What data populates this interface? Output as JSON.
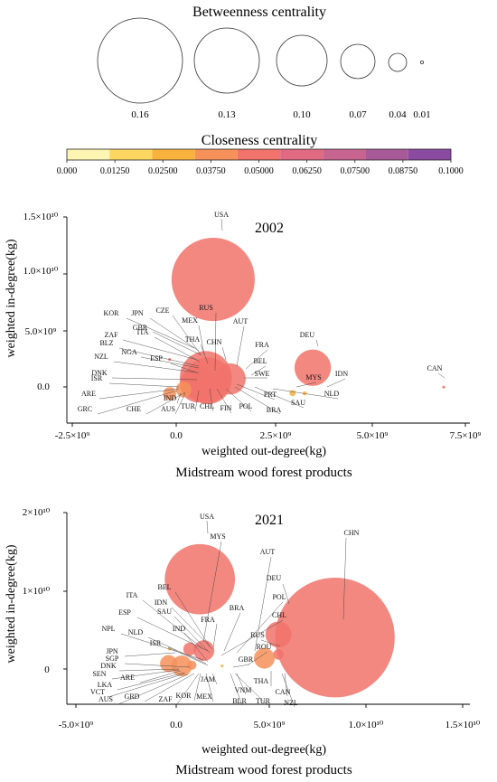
{
  "legend": {
    "betweenness_title": "Betweenness centrality",
    "betweenness_values": [
      "0.16",
      "0.13",
      "0.10",
      "0.07",
      "0.04",
      "0.01"
    ],
    "closeness_title": "Closeness centrality",
    "closeness_ticks": [
      "0.000",
      "0.01250",
      "0.02500",
      "0.03750",
      "0.05000",
      "0.06250",
      "0.07500",
      "0.08750",
      "0.1000"
    ],
    "closeness_colors": [
      "#fdf6b2",
      "#fbd762",
      "#f9b13e",
      "#f6915a",
      "#f1736b",
      "#df6a82",
      "#c7648f",
      "#a85a98",
      "#8a4ba0"
    ]
  },
  "chart_data": [
    {
      "type": "scatter",
      "title": "2002",
      "xlabel": "weighted out-degree(kg)",
      "ylabel": "weighted in-degree(kg)",
      "caption": "Midstream wood forest products",
      "xlim": [
        -2500000000.0,
        7500000000.0
      ],
      "ylim": [
        -2500000000.0,
        15000000000.0
      ],
      "x_ticks": [
        "-2.5×10⁹",
        "0.0",
        "2.5×10⁹",
        "5.0×10⁹",
        "7.5×10⁹"
      ],
      "y_ticks": [
        "0.0",
        "5.0×10⁹",
        "1.0×10¹⁰",
        "1.5×10¹⁰"
      ],
      "points": [
        {
          "x": 1130000000.0,
          "y": 9700000000.0,
          "betweenness": 0.16,
          "color": "#f1736b",
          "label": "USA"
        },
        {
          "x": 3600000000.0,
          "y": 2200000000.0,
          "betweenness": 0.07,
          "color": "#f1736b",
          "label": "DEU"
        },
        {
          "x": 950000000.0,
          "y": 1400000000.0,
          "betweenness": 0.1,
          "color": "#f1736b",
          "label": "RUS"
        },
        {
          "x": 1000000000.0,
          "y": 1100000000.0,
          "betweenness": 0.09,
          "color": "#f1736b",
          "label": "CHN"
        },
        {
          "x": 1550000000.0,
          "y": 1250000000.0,
          "betweenness": 0.06,
          "color": "#f1736b",
          "label": "AUT"
        },
        {
          "x": 750000000.0,
          "y": 800000000.0,
          "betweenness": 0.07,
          "color": "#f1736b",
          "label": "SWE"
        },
        {
          "x": 50000000.0,
          "y": 0.0,
          "betweenness": 0.025,
          "color": "#f6915a",
          "label": "IND"
        },
        {
          "x": 400000000.0,
          "y": 350000000.0,
          "betweenness": 0.03,
          "color": "#f6915a",
          "label": "FIN"
        },
        {
          "x": 3100000000.0,
          "y": 50000000.0,
          "betweenness": 0.012,
          "color": "#f9b13e",
          "label": "MYS"
        },
        {
          "x": 3400000000.0,
          "y": 20000000.0,
          "betweenness": 0.008,
          "color": "#f9b13e",
          "label": "IDN"
        },
        {
          "x": 50000000.0,
          "y": 2900000000.0,
          "betweenness": 0.004,
          "color": "#f1736b",
          "label": "ITA"
        },
        {
          "x": 6850000000.0,
          "y": 550000000.0,
          "betweenness": 0.004,
          "color": "#f1736b",
          "label": "CAN"
        }
      ],
      "labels": [
        "USA",
        "KOR",
        "JPN",
        "CZE",
        "GBR",
        "ZAF",
        "ITA",
        "MEX",
        "RUS",
        "THA",
        "CHN",
        "AUT",
        "BLZ",
        "NGA",
        "NZL",
        "ESP",
        "DEU",
        "FRA",
        "BEL",
        "DNK",
        "SWE",
        "ISR",
        "MYS",
        "IDN",
        "CAN",
        "ARE",
        "GRC",
        "CHE",
        "IND",
        "AUS",
        "TUR",
        "CHL",
        "FIN",
        "POL",
        "BRA",
        "PRT",
        "SAU",
        "NLD"
      ]
    },
    {
      "type": "scatter",
      "title": "2021",
      "xlabel": "weighted out-degree(kg)",
      "ylabel": "weighted in-degree(kg)",
      "caption": "Midstream wood forest products",
      "xlim": [
        -5000000000.0,
        15000000000.0
      ],
      "ylim": [
        -5000000000.0,
        20000000000.0
      ],
      "x_ticks": [
        "-5.0×10⁹",
        "0.0",
        "5.0×10⁹",
        "1.0×10¹⁰",
        "1.5×10¹⁰"
      ],
      "y_ticks": [
        "0",
        "1×10¹⁰",
        "2×10¹⁰"
      ],
      "points": [
        {
          "x": 8300000000.0,
          "y": 3700000000.0,
          "betweenness": 0.23,
          "color": "#f1736b",
          "label": "CHN"
        },
        {
          "x": 1600000000.0,
          "y": 11300000000.0,
          "betweenness": 0.135,
          "color": "#f1736b",
          "label": "USA"
        },
        {
          "x": 5500000000.0,
          "y": 4100000000.0,
          "betweenness": 0.05,
          "color": "#f1736b",
          "label": "RUS"
        },
        {
          "x": 5500000000.0,
          "y": 1500000000.0,
          "betweenness": 0.02,
          "color": "#f1736b",
          "label": "DEU"
        },
        {
          "x": 1800000000.0,
          "y": 2000000000.0,
          "betweenness": 0.04,
          "color": "#f1736b",
          "label": "FRA"
        },
        {
          "x": 1100000000.0,
          "y": 2200000000.0,
          "betweenness": 0.025,
          "color": "#f1736b",
          "label": "BEL"
        },
        {
          "x": 4800000000.0,
          "y": 1000000000.0,
          "betweenness": 0.04,
          "color": "#f6915a",
          "label": "THA"
        },
        {
          "x": 700000000.0,
          "y": 0.0,
          "betweenness": 0.04,
          "color": "#f6915a",
          "label": "KOR"
        },
        {
          "x": 50000000.0,
          "y": 300000000.0,
          "betweenness": 0.033,
          "color": "#f6915a",
          "label": "JAM"
        },
        {
          "x": 1200000000.0,
          "y": 100000000.0,
          "betweenness": 0.018,
          "color": "#f6915a",
          "label": "VNM"
        },
        {
          "x": 2700000000.0,
          "y": 0.0,
          "betweenness": 0.004,
          "color": "#f9b13e",
          "label": "GBR"
        },
        {
          "x": 100000000.0,
          "y": 2200000000.0,
          "betweenness": 0.004,
          "color": "#f9b13e",
          "label": "JPN"
        }
      ],
      "labels": [
        "USA",
        "MYS",
        "CHN",
        "AUT",
        "DEU",
        "BEL",
        "ITA",
        "IDN",
        "POL",
        "ESP",
        "SAU",
        "BRA",
        "CHL",
        "FRA",
        "NPL",
        "IND",
        "RUS",
        "NLD",
        "ISR",
        "ROU",
        "JPN",
        "GBR",
        "SGP",
        "DNK",
        "SEN",
        "ARE",
        "LKA",
        "VCT",
        "AUS",
        "GRD",
        "ZAF",
        "KOR",
        "MEX",
        "JAM",
        "THA",
        "CAN",
        "VNM",
        "BLR",
        "TUR",
        "NZL"
      ]
    }
  ]
}
